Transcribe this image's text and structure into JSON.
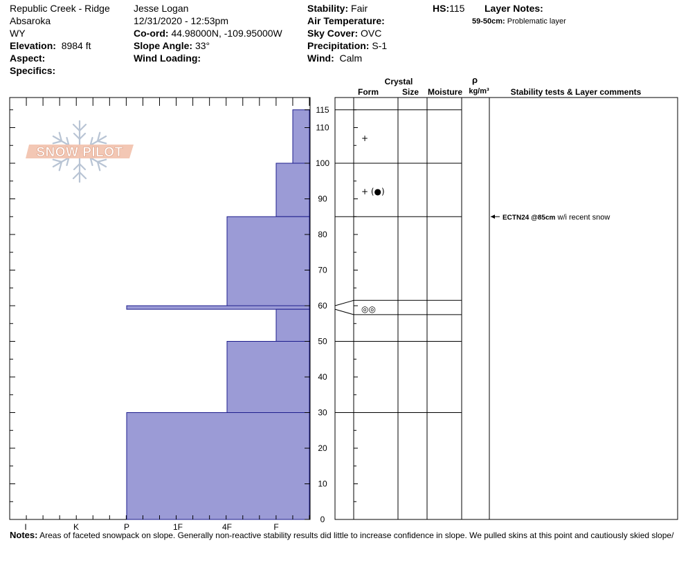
{
  "site": {
    "location": "Republic Creek - Ridge",
    "range": "Absaroka",
    "state": "WY",
    "elevation_label": "Elevation:",
    "elevation": "8984 ft",
    "aspect_label": "Aspect:",
    "aspect": "",
    "specifics_label": "Specifics:",
    "specifics": ""
  },
  "observer": {
    "name": "Jesse Logan",
    "datetime": "12/31/2020 - 12:53pm",
    "coord_label": "Co-ord:",
    "coord": "44.98000N, -109.95000W",
    "slope_label": "Slope Angle:",
    "slope": "33°",
    "wind_loading_label": "Wind Loading:",
    "wind_loading": ""
  },
  "conditions": {
    "stability_label": "Stability:",
    "stability": "Fair",
    "air_temp_label": "Air Temperature:",
    "air_temp": "",
    "sky_label": "Sky Cover:",
    "sky": "OVC",
    "precip_label": "Precipitation:",
    "precip": "S-1",
    "wind_label": "Wind:",
    "wind": "Calm"
  },
  "hs": {
    "label": "HS:",
    "value": "115"
  },
  "layer_notes": {
    "label": "Layer Notes:",
    "items": [
      {
        "range": "59-50cm:",
        "text": "Problematic layer"
      }
    ]
  },
  "logo": {
    "text": "SNOW PILOT"
  },
  "columns": {
    "crystal": "Crystal",
    "form": "Form",
    "size": "Size",
    "moisture": "Moisture",
    "rho": "ρ",
    "density_unit": "kg/m³",
    "stability_comments": "Stability tests & Layer comments"
  },
  "chart_data": {
    "type": "bar",
    "orientation": "horizontal-step",
    "x_axis": {
      "labels": [
        "I",
        "K",
        "P",
        "1F",
        "4F",
        "F"
      ],
      "direction": "hardness decreasing to the right"
    },
    "y_axis": {
      "min": 0,
      "max": 120,
      "ticks": [
        0,
        10,
        20,
        30,
        40,
        50,
        60,
        70,
        80,
        90,
        100,
        110
      ],
      "hs_tick": 115,
      "unit": "cm"
    },
    "layers": [
      {
        "top": 115,
        "bottom": 100,
        "hardness": "F-"
      },
      {
        "top": 100,
        "bottom": 85,
        "hardness": "F"
      },
      {
        "top": 85,
        "bottom": 60,
        "hardness": "4F"
      },
      {
        "top": 60,
        "bottom": 59,
        "hardness": "P"
      },
      {
        "top": 59,
        "bottom": 50,
        "hardness": "F"
      },
      {
        "top": 50,
        "bottom": 30,
        "hardness": "4F"
      },
      {
        "top": 30,
        "bottom": 0,
        "hardness": "P"
      }
    ],
    "layer_boundaries": [
      115,
      100,
      85,
      61.5,
      57.5,
      50,
      30
    ],
    "grain_forms": [
      {
        "height": 107,
        "symbol": "+"
      },
      {
        "height": 92,
        "symbol": "+ (●)"
      },
      {
        "height": 59,
        "symbol": "◎◎"
      }
    ],
    "stability_tests": [
      {
        "height": 85,
        "label": "ECTN24 @85cm",
        "comment": "w/i recent snow"
      }
    ]
  },
  "notes": {
    "label": "Notes:",
    "text": "Areas of faceted snowpack on slope. Generally non-reactive stability results did little to increase confidence in slope. We pulled skins at this point and cautiously skied slope/"
  }
}
